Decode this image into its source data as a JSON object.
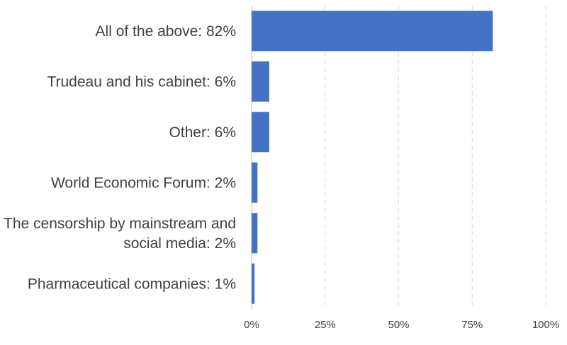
{
  "chart_data": {
    "type": "bar",
    "orientation": "horizontal",
    "categories": [
      [
        "All of the above: 82%"
      ],
      [
        "Trudeau and his cabinet: 6%"
      ],
      [
        "Other: 6%"
      ],
      [
        "World Economic Forum: 2%"
      ],
      [
        "The censorship by mainstream and",
        "social media: 2%"
      ],
      [
        "Pharmaceutical companies: 1%"
      ]
    ],
    "values": [
      82,
      6,
      6,
      2,
      2,
      1
    ],
    "xlim": [
      0,
      100
    ],
    "xticks": [
      0,
      25,
      50,
      75,
      100
    ],
    "xtick_labels": [
      "0%",
      "25%",
      "50%",
      "75%",
      "100%"
    ],
    "grid": "vertical dashed",
    "bar_color": "#4472c4"
  }
}
